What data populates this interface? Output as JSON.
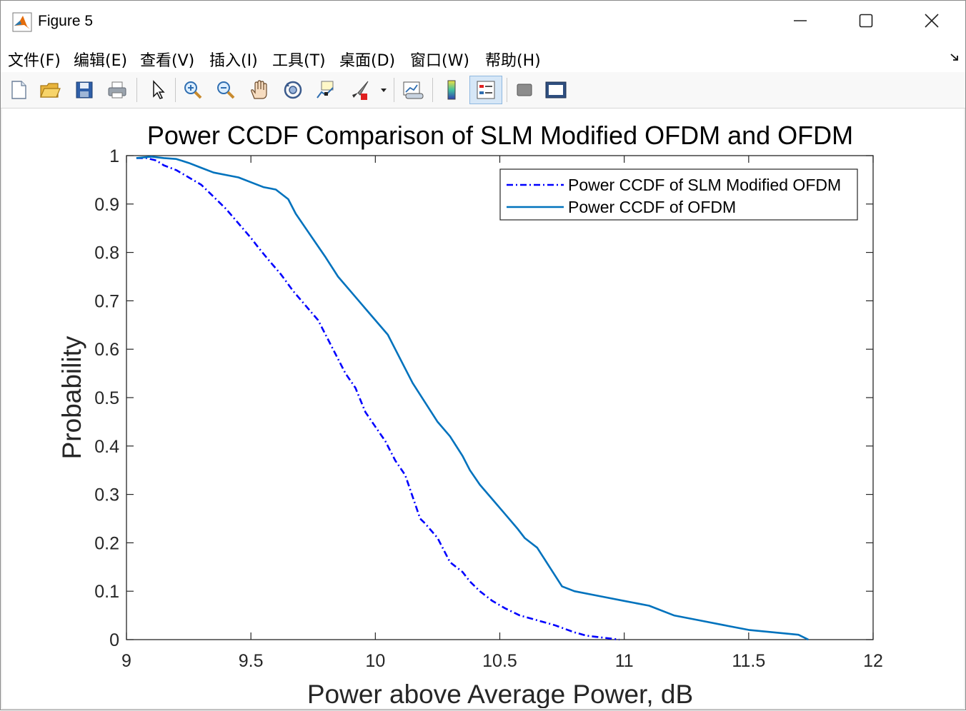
{
  "window": {
    "title": "Figure 5",
    "minimize_glyph": "—",
    "maximize_glyph": "☐",
    "close_glyph": "✕"
  },
  "menu": {
    "items": [
      "文件(F)",
      "编辑(E)",
      "查看(V)",
      "插入(I)",
      "工具(T)",
      "桌面(D)",
      "窗口(W)",
      "帮助(H)"
    ]
  },
  "toolbar": {
    "icons": [
      "new-figure-icon",
      "open-file-icon",
      "save-icon",
      "print-icon",
      "pointer-icon",
      "zoom-in-icon",
      "zoom-out-icon",
      "pan-hand-icon",
      "rotate-3d-icon",
      "data-cursor-icon",
      "brush-icon",
      "brush-dropdown-icon",
      "link-plot-icon",
      "colorbar-icon",
      "legend-icon",
      "hide-plot-tools-icon",
      "show-plot-tools-icon"
    ]
  },
  "colors": {
    "slm_series": "#0000ff",
    "ofdm_series": "#0072bd",
    "axes": "#262626"
  },
  "chart_data": {
    "type": "line",
    "title": "Power CCDF Comparison of SLM Modified OFDM and OFDM",
    "xlabel": "Power above Average Power, dB",
    "ylabel": "Probability",
    "xlim": [
      9,
      12
    ],
    "ylim": [
      0,
      1
    ],
    "xticks": [
      "9",
      "9.5",
      "10",
      "10.5",
      "11",
      "11.5",
      "12"
    ],
    "yticks": [
      "0",
      "0.1",
      "0.2",
      "0.3",
      "0.4",
      "0.5",
      "0.6",
      "0.7",
      "0.8",
      "0.9",
      "1"
    ],
    "legend_position": "top-right",
    "grid": false,
    "series": [
      {
        "name": "Power CCDF of SLM Modified OFDM",
        "style": "dash-dot",
        "x": [
          9.04,
          9.08,
          9.12,
          9.15,
          9.2,
          9.25,
          9.3,
          9.35,
          9.4,
          9.45,
          9.5,
          9.53,
          9.57,
          9.62,
          9.67,
          9.72,
          9.77,
          9.8,
          9.84,
          9.88,
          9.92,
          9.96,
          10.0,
          10.04,
          10.08,
          10.12,
          10.16,
          10.18,
          10.2,
          10.25,
          10.3,
          10.35,
          10.38,
          10.42,
          10.47,
          10.52,
          10.58,
          10.65,
          10.72,
          10.8,
          10.85,
          10.9,
          10.98
        ],
        "y": [
          0.995,
          0.995,
          0.99,
          0.98,
          0.97,
          0.955,
          0.94,
          0.915,
          0.89,
          0.86,
          0.83,
          0.81,
          0.785,
          0.755,
          0.72,
          0.69,
          0.66,
          0.63,
          0.59,
          0.55,
          0.52,
          0.47,
          0.44,
          0.41,
          0.37,
          0.34,
          0.28,
          0.25,
          0.24,
          0.21,
          0.16,
          0.14,
          0.12,
          0.1,
          0.08,
          0.065,
          0.05,
          0.04,
          0.03,
          0.015,
          0.008,
          0.005,
          0.0
        ]
      },
      {
        "name": "Power CCDF of OFDM",
        "style": "solid",
        "x": [
          9.04,
          9.1,
          9.15,
          9.2,
          9.25,
          9.3,
          9.35,
          9.4,
          9.45,
          9.5,
          9.55,
          9.6,
          9.65,
          9.68,
          9.72,
          9.76,
          9.8,
          9.85,
          9.9,
          9.95,
          10.0,
          10.05,
          10.08,
          10.12,
          10.15,
          10.2,
          10.25,
          10.3,
          10.35,
          10.38,
          10.42,
          10.47,
          10.52,
          10.57,
          10.6,
          10.65,
          10.7,
          10.75,
          10.8,
          10.9,
          11.0,
          11.1,
          11.2,
          11.3,
          11.4,
          11.5,
          11.6,
          11.7,
          11.74
        ],
        "y": [
          0.995,
          0.998,
          0.995,
          0.993,
          0.985,
          0.975,
          0.965,
          0.96,
          0.955,
          0.945,
          0.935,
          0.93,
          0.91,
          0.88,
          0.85,
          0.82,
          0.79,
          0.75,
          0.72,
          0.69,
          0.66,
          0.63,
          0.6,
          0.56,
          0.53,
          0.49,
          0.45,
          0.42,
          0.38,
          0.35,
          0.32,
          0.29,
          0.26,
          0.23,
          0.21,
          0.19,
          0.15,
          0.11,
          0.1,
          0.09,
          0.08,
          0.07,
          0.05,
          0.04,
          0.03,
          0.02,
          0.015,
          0.01,
          0.0
        ]
      }
    ]
  }
}
